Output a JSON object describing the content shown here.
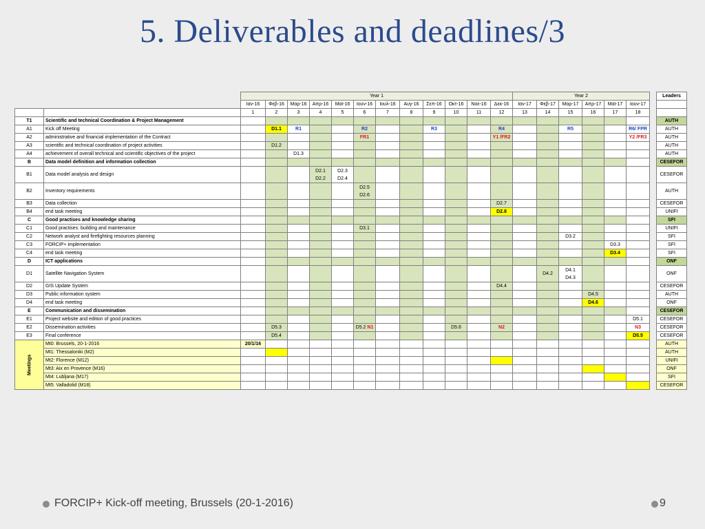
{
  "title": "5. Deliverables and deadlines/3",
  "footer": {
    "text": "FORCIP+ Kick-off meeting, Brussels (20-1-2016)",
    "page": "9",
    "bullet_icon": "circle-bullet-icon"
  },
  "table": {
    "year1": "Year 1",
    "year2": "Year 2",
    "leaders_header": "Leaders",
    "months": [
      "Ιαν-16",
      "Φεβ-16",
      "Μαρ-16",
      "Απρ-16",
      "Μαϊ-16",
      "Ιουν-16",
      "Ιουλ-16",
      "Αυγ-16",
      "Σεπ-16",
      "Οκτ-16",
      "Νοε-16",
      "Δεκ-16",
      "Ιαν-17",
      "Φεβ-17",
      "Μαρ-17",
      "Απρ-17",
      "Μαϊ-17",
      "Ιουν-17"
    ],
    "month_numbers": [
      "1",
      "2",
      "3",
      "4",
      "5",
      "6",
      "7",
      "8",
      "9",
      "10",
      "11",
      "12",
      "13",
      "14",
      "15",
      "16",
      "17",
      "18"
    ],
    "meetings_label": "Meetings",
    "rows": [
      {
        "id": "T1",
        "name": "Scientific and technical Coordination & Project Management",
        "kind": "section",
        "leader": "AUTH",
        "cells": {}
      },
      {
        "id": "A1",
        "name": "Kick off Meeting",
        "kind": "task",
        "leader": "AUTH",
        "cells": {
          "2": [
            {
              "t": "D1.1",
              "c": "y"
            }
          ],
          "3": [
            {
              "t": "R1",
              "c": "blue"
            }
          ],
          "6": [
            {
              "t": "R2",
              "c": "blue"
            }
          ],
          "9": [
            {
              "t": "R3",
              "c": "blue"
            }
          ],
          "12": [
            {
              "t": "R4",
              "c": "blue"
            }
          ],
          "15": [
            {
              "t": "R5",
              "c": "blue"
            }
          ],
          "18": [
            {
              "t": "R6/ FPR",
              "c": "blue"
            }
          ]
        }
      },
      {
        "id": "A2",
        "name": "administrative and financial implementation of the Contract",
        "kind": "task",
        "leader": "AUTH",
        "cells": {
          "6": [
            {
              "t": "FR1",
              "c": "red"
            }
          ],
          "12": [
            {
              "t": "Y1 /FR2",
              "c": "red"
            }
          ],
          "18": [
            {
              "t": "Y2 /FR3",
              "c": "red"
            }
          ]
        }
      },
      {
        "id": "A3",
        "name": "scientific and technical coordination of project activities",
        "kind": "task",
        "leader": "AUTH",
        "cells": {
          "2": [
            {
              "t": "D1.2",
              "c": ""
            }
          ]
        }
      },
      {
        "id": "A4",
        "name": "achievement of overall technical and scientific objectives of the project",
        "kind": "task",
        "leader": "AUTH",
        "cells": {
          "3": [
            {
              "t": "D1.3",
              "c": ""
            }
          ]
        }
      },
      {
        "id": "B",
        "name": "Data model definition and information collection",
        "kind": "section",
        "leader": "CESEFOR",
        "cells": {}
      },
      {
        "id": "B1",
        "name": "Data model analysis and design",
        "kind": "task",
        "tall": true,
        "leader": "CESEFOR",
        "cells": {
          "4": [
            {
              "t": "D2.1",
              "c": ""
            },
            {
              "t": "D2.2",
              "c": ""
            }
          ],
          "5": [
            {
              "t": "D2.3",
              "c": ""
            },
            {
              "t": "D2.4",
              "c": ""
            }
          ]
        }
      },
      {
        "id": "B2",
        "name": "Inventory requirements",
        "kind": "task",
        "tall": true,
        "leader": "AUTH",
        "cells": {
          "6": [
            {
              "t": "D2.5",
              "c": ""
            },
            {
              "t": "D2.6",
              "c": ""
            }
          ]
        }
      },
      {
        "id": "B3",
        "name": "Data collection",
        "kind": "task",
        "leader": "CESEFOR",
        "cells": {
          "12": [
            {
              "t": "D2.7",
              "c": ""
            }
          ]
        }
      },
      {
        "id": "B4",
        "name": "end task meeting",
        "kind": "task",
        "leader": "UNIFI",
        "cells": {
          "12": [
            {
              "t": "D2.8",
              "c": "y"
            }
          ]
        }
      },
      {
        "id": "C",
        "name": "Good practises and knowledge sharing",
        "kind": "section",
        "leader": "SFI",
        "cells": {}
      },
      {
        "id": "C1",
        "name": "Good practises: building and maintenance",
        "kind": "task",
        "leader": "UNIFI",
        "cells": {
          "6": [
            {
              "t": "D3.1",
              "c": ""
            }
          ]
        }
      },
      {
        "id": "C2",
        "name": "Network analyst and firefighting resources planning",
        "kind": "task",
        "leader": "SFI",
        "cells": {
          "15": [
            {
              "t": "D3.2",
              "c": ""
            }
          ]
        }
      },
      {
        "id": "C3",
        "name": "FORCIP+ implementation",
        "kind": "task",
        "leader": "SFI",
        "cells": {
          "17": [
            {
              "t": "D3.3",
              "c": ""
            }
          ]
        }
      },
      {
        "id": "C4",
        "name": "end task meeting",
        "kind": "task",
        "leader": "SFI",
        "cells": {
          "17": [
            {
              "t": "D3.4",
              "c": "y"
            }
          ]
        }
      },
      {
        "id": "D",
        "name": "ICT applications",
        "kind": "section",
        "leader": "ONF",
        "cells": {}
      },
      {
        "id": "D1",
        "name": "Satellite Navigation System",
        "kind": "task",
        "tall": true,
        "leader": "ONF",
        "cells": {
          "14": [
            {
              "t": "D4.2",
              "c": ""
            }
          ],
          "15": [
            {
              "t": "D4.1",
              "c": ""
            },
            {
              "t": "D4.3",
              "c": ""
            }
          ]
        }
      },
      {
        "id": "D2",
        "name": "GIS Update System",
        "kind": "task",
        "leader": "CESEFOR",
        "cells": {
          "12": [
            {
              "t": "D4.4",
              "c": ""
            }
          ]
        }
      },
      {
        "id": "D3",
        "name": "Public information system",
        "kind": "task",
        "leader": "AUTH",
        "cells": {
          "16": [
            {
              "t": "D4.5",
              "c": ""
            }
          ]
        }
      },
      {
        "id": "D4",
        "name": "end task meeting",
        "kind": "task",
        "leader": "ONF",
        "cells": {
          "16": [
            {
              "t": "D4.6",
              "c": "y"
            }
          ]
        }
      },
      {
        "id": "E",
        "name": "Communication and dissemination",
        "kind": "section",
        "leader": "CESEFOR",
        "cells": {}
      },
      {
        "id": "E1",
        "name": "Project website and edition of good practices",
        "kind": "task",
        "leader": "CESEFOR",
        "cells": {
          "18": [
            {
              "t": "D5.1",
              "c": ""
            }
          ]
        }
      },
      {
        "id": "E2",
        "name": "Dissemination activities",
        "kind": "task",
        "leader": "CESEFOR",
        "cells": {
          "2": [
            {
              "t": "D5.3",
              "c": ""
            }
          ],
          "6": [
            {
              "t": "D5.2 ",
              "c": ""
            },
            {
              "t": "N1",
              "c": "red",
              "inline": true
            }
          ],
          "10": [
            {
              "t": "D5.6",
              "c": ""
            }
          ],
          "12": [
            {
              "t": "N2",
              "c": "red"
            }
          ],
          "18": [
            {
              "t": "N3",
              "c": "red"
            }
          ]
        }
      },
      {
        "id": "E3",
        "name": "Final conference",
        "kind": "task",
        "leader": "CESEFOR",
        "cells": {
          "2": [
            {
              "t": "D5.4",
              "c": ""
            }
          ],
          "18": [
            {
              "t": "D5.5",
              "c": "y"
            }
          ]
        }
      }
    ],
    "meetings": [
      {
        "name": "Mt0: Brussels, 20-1-2016",
        "leader": "AUTH",
        "col": 1,
        "label": "20/1/16"
      },
      {
        "name": "Mt1: Thessaloniki (M2)",
        "leader": "AUTH",
        "col": 2,
        "label": ""
      },
      {
        "name": "Mt2: Florence (M12)",
        "leader": "UNIFI",
        "col": 12,
        "label": ""
      },
      {
        "name": "Mt3: Aix en Provence (M16)",
        "leader": "ONF",
        "col": 16,
        "label": ""
      },
      {
        "name": "Mt4: Lubljana (M17)",
        "leader": "SFI",
        "col": 17,
        "label": ""
      },
      {
        "name": "Mt5: Valladolid (M18)",
        "leader": "CESEFOR",
        "col": 18,
        "label": ""
      }
    ]
  }
}
